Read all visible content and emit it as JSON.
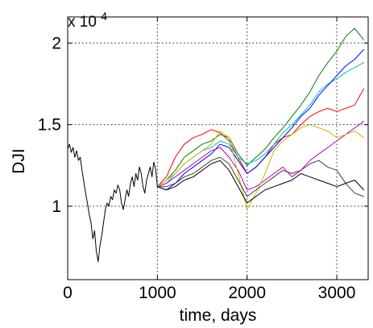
{
  "chart_data": {
    "type": "line",
    "title": "",
    "xlabel": "time, days",
    "ylabel": "DJI",
    "exponent_label": "x 10",
    "exponent_power": "4",
    "xlim": [
      0,
      3350
    ],
    "ylim": [
      0.55,
      2.16
    ],
    "grid": true,
    "legend": "none",
    "x_ticks": [
      {
        "value": 0,
        "label": "0"
      },
      {
        "value": 1000,
        "label": "1000"
      },
      {
        "value": 2000,
        "label": "2000"
      },
      {
        "value": 3000,
        "label": "3000"
      }
    ],
    "y_ticks": [
      {
        "value": 1,
        "label": "1"
      },
      {
        "value": 1.5,
        "label": "1.5"
      },
      {
        "value": 2,
        "label": "2"
      }
    ],
    "series": [
      {
        "color": "#000000",
        "points": [
          [
            0,
            1.35
          ],
          [
            20,
            1.38
          ],
          [
            40,
            1.33
          ],
          [
            60,
            1.36
          ],
          [
            80,
            1.3
          ],
          [
            100,
            1.34
          ],
          [
            120,
            1.28
          ],
          [
            140,
            1.3
          ],
          [
            160,
            1.22
          ],
          [
            180,
            1.15
          ],
          [
            200,
            1.08
          ],
          [
            220,
            1.02
          ],
          [
            240,
            0.95
          ],
          [
            260,
            0.9
          ],
          [
            280,
            0.8
          ],
          [
            300,
            0.85
          ],
          [
            320,
            0.72
          ],
          [
            340,
            0.66
          ],
          [
            360,
            0.76
          ],
          [
            380,
            0.82
          ],
          [
            400,
            0.9
          ],
          [
            420,
            0.98
          ],
          [
            440,
            1.02
          ],
          [
            460,
            1.0
          ],
          [
            480,
            1.06
          ],
          [
            500,
            1.04
          ],
          [
            520,
            1.1
          ],
          [
            540,
            1.08
          ],
          [
            560,
            1.13
          ],
          [
            580,
            1.1
          ],
          [
            600,
            1.02
          ],
          [
            620,
            0.98
          ],
          [
            640,
            1.04
          ],
          [
            660,
            1.1
          ],
          [
            680,
            1.06
          ],
          [
            700,
            1.14
          ],
          [
            720,
            1.18
          ],
          [
            740,
            1.12
          ],
          [
            760,
            1.2
          ],
          [
            780,
            1.16
          ],
          [
            800,
            1.24
          ],
          [
            820,
            1.2
          ],
          [
            840,
            1.12
          ],
          [
            860,
            1.08
          ],
          [
            880,
            1.16
          ],
          [
            900,
            1.2
          ],
          [
            920,
            1.24
          ],
          [
            940,
            1.18
          ],
          [
            960,
            1.27
          ],
          [
            980,
            1.23
          ],
          [
            1000,
            1.12
          ]
        ]
      },
      {
        "color": "#ff0000",
        "points": [
          [
            1000,
            1.12
          ],
          [
            1100,
            1.18
          ],
          [
            1200,
            1.3
          ],
          [
            1300,
            1.38
          ],
          [
            1400,
            1.42
          ],
          [
            1500,
            1.44
          ],
          [
            1600,
            1.47
          ],
          [
            1700,
            1.45
          ],
          [
            1800,
            1.4
          ],
          [
            1900,
            1.3
          ],
          [
            2000,
            1.2
          ],
          [
            2100,
            1.24
          ],
          [
            2200,
            1.3
          ],
          [
            2300,
            1.38
          ],
          [
            2400,
            1.42
          ],
          [
            2500,
            1.44
          ],
          [
            2600,
            1.5
          ],
          [
            2700,
            1.55
          ],
          [
            2800,
            1.58
          ],
          [
            2900,
            1.6
          ],
          [
            3000,
            1.58
          ],
          [
            3100,
            1.6
          ],
          [
            3200,
            1.62
          ],
          [
            3300,
            1.72
          ]
        ]
      },
      {
        "color": "#008000",
        "points": [
          [
            1000,
            1.12
          ],
          [
            1100,
            1.16
          ],
          [
            1200,
            1.22
          ],
          [
            1300,
            1.3
          ],
          [
            1400,
            1.34
          ],
          [
            1500,
            1.38
          ],
          [
            1600,
            1.4
          ],
          [
            1700,
            1.44
          ],
          [
            1800,
            1.42
          ],
          [
            1900,
            1.32
          ],
          [
            2000,
            1.25
          ],
          [
            2100,
            1.3
          ],
          [
            2200,
            1.35
          ],
          [
            2300,
            1.42
          ],
          [
            2400,
            1.48
          ],
          [
            2500,
            1.55
          ],
          [
            2600,
            1.62
          ],
          [
            2700,
            1.7
          ],
          [
            2800,
            1.8
          ],
          [
            2900,
            1.88
          ],
          [
            3000,
            1.95
          ],
          [
            3100,
            2.04
          ],
          [
            3200,
            2.09
          ],
          [
            3300,
            2.02
          ]
        ]
      },
      {
        "color": "#00bfbf",
        "points": [
          [
            1000,
            1.12
          ],
          [
            1100,
            1.14
          ],
          [
            1200,
            1.2
          ],
          [
            1300,
            1.26
          ],
          [
            1400,
            1.3
          ],
          [
            1500,
            1.34
          ],
          [
            1600,
            1.36
          ],
          [
            1700,
            1.4
          ],
          [
            1800,
            1.38
          ],
          [
            1900,
            1.3
          ],
          [
            2000,
            1.26
          ],
          [
            2100,
            1.28
          ],
          [
            2200,
            1.32
          ],
          [
            2300,
            1.38
          ],
          [
            2400,
            1.45
          ],
          [
            2500,
            1.5
          ],
          [
            2600,
            1.56
          ],
          [
            2700,
            1.62
          ],
          [
            2800,
            1.7
          ],
          [
            2900,
            1.75
          ],
          [
            3000,
            1.78
          ],
          [
            3100,
            1.82
          ],
          [
            3200,
            1.85
          ],
          [
            3300,
            1.88
          ]
        ]
      },
      {
        "color": "#0000ff",
        "points": [
          [
            1000,
            1.12
          ],
          [
            1100,
            1.1
          ],
          [
            1200,
            1.14
          ],
          [
            1300,
            1.2
          ],
          [
            1400,
            1.24
          ],
          [
            1500,
            1.28
          ],
          [
            1600,
            1.32
          ],
          [
            1700,
            1.38
          ],
          [
            1800,
            1.36
          ],
          [
            1900,
            1.28
          ],
          [
            2000,
            1.2
          ],
          [
            2100,
            1.24
          ],
          [
            2200,
            1.3
          ],
          [
            2300,
            1.36
          ],
          [
            2400,
            1.42
          ],
          [
            2500,
            1.48
          ],
          [
            2600,
            1.55
          ],
          [
            2700,
            1.6
          ],
          [
            2800,
            1.68
          ],
          [
            2900,
            1.74
          ],
          [
            3000,
            1.8
          ],
          [
            3100,
            1.86
          ],
          [
            3200,
            1.9
          ],
          [
            3300,
            1.96
          ]
        ]
      },
      {
        "color": "#bf00bf",
        "points": [
          [
            1000,
            1.12
          ],
          [
            1100,
            1.14
          ],
          [
            1200,
            1.18
          ],
          [
            1300,
            1.22
          ],
          [
            1400,
            1.26
          ],
          [
            1500,
            1.3
          ],
          [
            1600,
            1.34
          ],
          [
            1700,
            1.36
          ],
          [
            1800,
            1.3
          ],
          [
            1900,
            1.22
          ],
          [
            2000,
            1.1
          ],
          [
            2100,
            1.12
          ],
          [
            2200,
            1.16
          ],
          [
            2300,
            1.2
          ],
          [
            2400,
            1.24
          ],
          [
            2500,
            1.18
          ],
          [
            2600,
            1.22
          ],
          [
            2700,
            1.28
          ],
          [
            2800,
            1.32
          ],
          [
            2900,
            1.36
          ],
          [
            3000,
            1.4
          ],
          [
            3100,
            1.44
          ],
          [
            3200,
            1.48
          ],
          [
            3300,
            1.52
          ]
        ]
      },
      {
        "color": "#bfbf00",
        "points": [
          [
            1000,
            1.12
          ],
          [
            1100,
            1.16
          ],
          [
            1200,
            1.2
          ],
          [
            1300,
            1.26
          ],
          [
            1400,
            1.3
          ],
          [
            1500,
            1.34
          ],
          [
            1600,
            1.38
          ],
          [
            1700,
            1.46
          ],
          [
            1800,
            1.42
          ],
          [
            1900,
            1.2
          ],
          [
            2000,
            0.98
          ],
          [
            2100,
            1.08
          ],
          [
            2200,
            1.2
          ],
          [
            2300,
            1.34
          ],
          [
            2400,
            1.4
          ],
          [
            2500,
            1.44
          ],
          [
            2600,
            1.48
          ],
          [
            2700,
            1.5
          ],
          [
            2800,
            1.48
          ],
          [
            2900,
            1.46
          ],
          [
            3000,
            1.42
          ],
          [
            3100,
            1.44
          ],
          [
            3200,
            1.46
          ],
          [
            3300,
            1.42
          ]
        ]
      },
      {
        "color": "#404040",
        "points": [
          [
            1000,
            1.12
          ],
          [
            1100,
            1.12
          ],
          [
            1200,
            1.14
          ],
          [
            1300,
            1.18
          ],
          [
            1400,
            1.2
          ],
          [
            1500,
            1.24
          ],
          [
            1600,
            1.28
          ],
          [
            1700,
            1.3
          ],
          [
            1800,
            1.26
          ],
          [
            1900,
            1.16
          ],
          [
            2000,
            1.06
          ],
          [
            2100,
            1.1
          ],
          [
            2200,
            1.14
          ],
          [
            2300,
            1.18
          ],
          [
            2400,
            1.22
          ],
          [
            2500,
            1.2
          ],
          [
            2600,
            1.22
          ],
          [
            2700,
            1.26
          ],
          [
            2800,
            1.28
          ],
          [
            2900,
            1.24
          ],
          [
            3000,
            1.22
          ],
          [
            3100,
            1.14
          ],
          [
            3200,
            1.08
          ],
          [
            3300,
            1.06
          ]
        ]
      },
      {
        "color": "#000000",
        "points": [
          [
            1000,
            1.12
          ],
          [
            1100,
            1.1
          ],
          [
            1200,
            1.12
          ],
          [
            1300,
            1.16
          ],
          [
            1400,
            1.18
          ],
          [
            1500,
            1.22
          ],
          [
            1600,
            1.26
          ],
          [
            1700,
            1.28
          ],
          [
            1800,
            1.22
          ],
          [
            1900,
            1.12
          ],
          [
            2000,
            1.02
          ],
          [
            2100,
            1.06
          ],
          [
            2200,
            1.1
          ],
          [
            2300,
            1.12
          ],
          [
            2400,
            1.14
          ],
          [
            2500,
            1.16
          ],
          [
            2600,
            1.2
          ],
          [
            2700,
            1.18
          ],
          [
            2800,
            1.16
          ],
          [
            2900,
            1.14
          ],
          [
            3000,
            1.12
          ],
          [
            3100,
            1.14
          ],
          [
            3200,
            1.16
          ],
          [
            3300,
            1.1
          ]
        ]
      }
    ]
  }
}
